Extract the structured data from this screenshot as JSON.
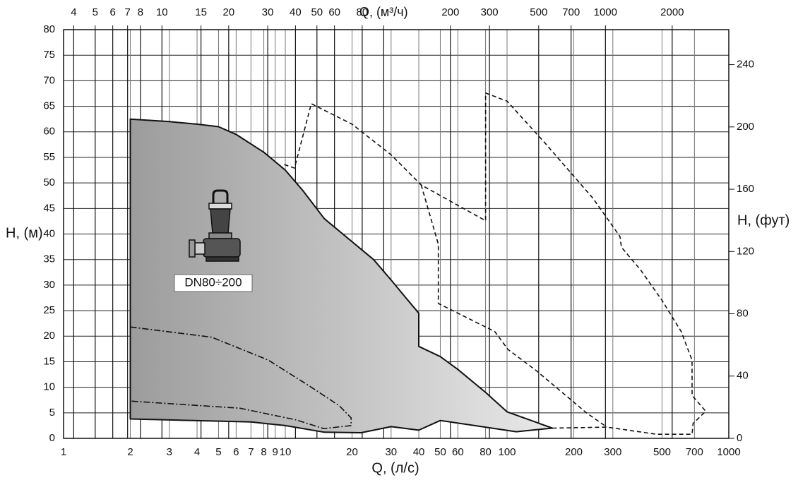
{
  "chart_data": {
    "type": "line",
    "x_label": "Q, (л/с)",
    "y_label": "H, (м)",
    "y2_label": "H, (фут)",
    "label": "DN80÷200",
    "xscale": "log",
    "xlim": [
      1,
      1000
    ],
    "xticks": [
      1,
      2,
      3,
      4,
      5,
      6,
      7,
      8,
      9,
      10,
      20,
      30,
      40,
      50,
      60,
      80,
      100,
      200,
      300,
      500,
      700,
      1000
    ],
    "x2lim": [
      3.6,
      3600
    ],
    "x2ticks": [
      4,
      5,
      6,
      7,
      8,
      10,
      15,
      20,
      30,
      40,
      50,
      60,
      80,
      {
        "value": 100,
        "label": "Q, (м³/ч)"
      },
      200,
      300,
      500,
      700,
      1000,
      2000
    ],
    "ylim": [
      0,
      80
    ],
    "yticks": [
      0,
      5,
      10,
      15,
      20,
      25,
      30,
      35,
      40,
      45,
      50,
      55,
      60,
      65,
      70,
      75,
      80
    ],
    "y2lim": [
      0,
      262.47
    ],
    "y2ticks": [
      0,
      40,
      80,
      120,
      160,
      200,
      240
    ],
    "grid": true,
    "series": [
      {
        "style": "area",
        "color": "#111111",
        "gradient": [
          "#9c9c9c",
          "#e9e9e9"
        ],
        "x": [
          2,
          2,
          3,
          4,
          5,
          6,
          8,
          10,
          12,
          15,
          20,
          25,
          30,
          35,
          40,
          40,
          50,
          60,
          80,
          100,
          160,
          110,
          50,
          40,
          30,
          22,
          15,
          10,
          7,
          2
        ],
        "values": [
          3.8,
          62.5,
          62,
          61.5,
          61,
          59.5,
          56,
          52.5,
          48.5,
          43,
          38.5,
          35,
          31,
          27.5,
          24.5,
          18,
          16,
          13.5,
          9,
          5.2,
          2,
          1.3,
          3.5,
          1.6,
          2.3,
          1.1,
          1.2,
          2.5,
          3.2,
          3.8
        ]
      },
      {
        "style": "dashed",
        "color": "#111111",
        "x": [
          9.9,
          11,
          13.1,
          20,
          30,
          41,
          80,
          80,
          100,
          147,
          244,
          323,
          328,
          400,
          500,
          610,
          683,
          683,
          787,
          690,
          683,
          472,
          282,
          160,
          null,
          41,
          49,
          49,
          88,
          101,
          135,
          228,
          282
        ],
        "values": [
          53.6,
          52.9,
          65.5,
          61.5,
          55.5,
          49.6,
          42.6,
          67.6,
          66,
          58,
          47,
          39.5,
          37.4,
          33,
          27,
          20.9,
          15.3,
          8.4,
          5.3,
          2.9,
          0.8,
          0.8,
          2.2,
          2,
          null,
          49.6,
          38,
          26.4,
          20.9,
          17.4,
          13.3,
          5,
          2.2
        ]
      },
      {
        "style": "dashdot",
        "color": "#111111",
        "x": [
          2,
          4.66,
          8.4,
          13,
          17.5,
          19.8,
          19.8,
          14.9,
          11.2,
          6.25,
          2
        ],
        "values": [
          21.8,
          19.8,
          15.3,
          10.1,
          6.4,
          4,
          2.5,
          1.9,
          3.6,
          5.9,
          7.3
        ]
      }
    ]
  }
}
